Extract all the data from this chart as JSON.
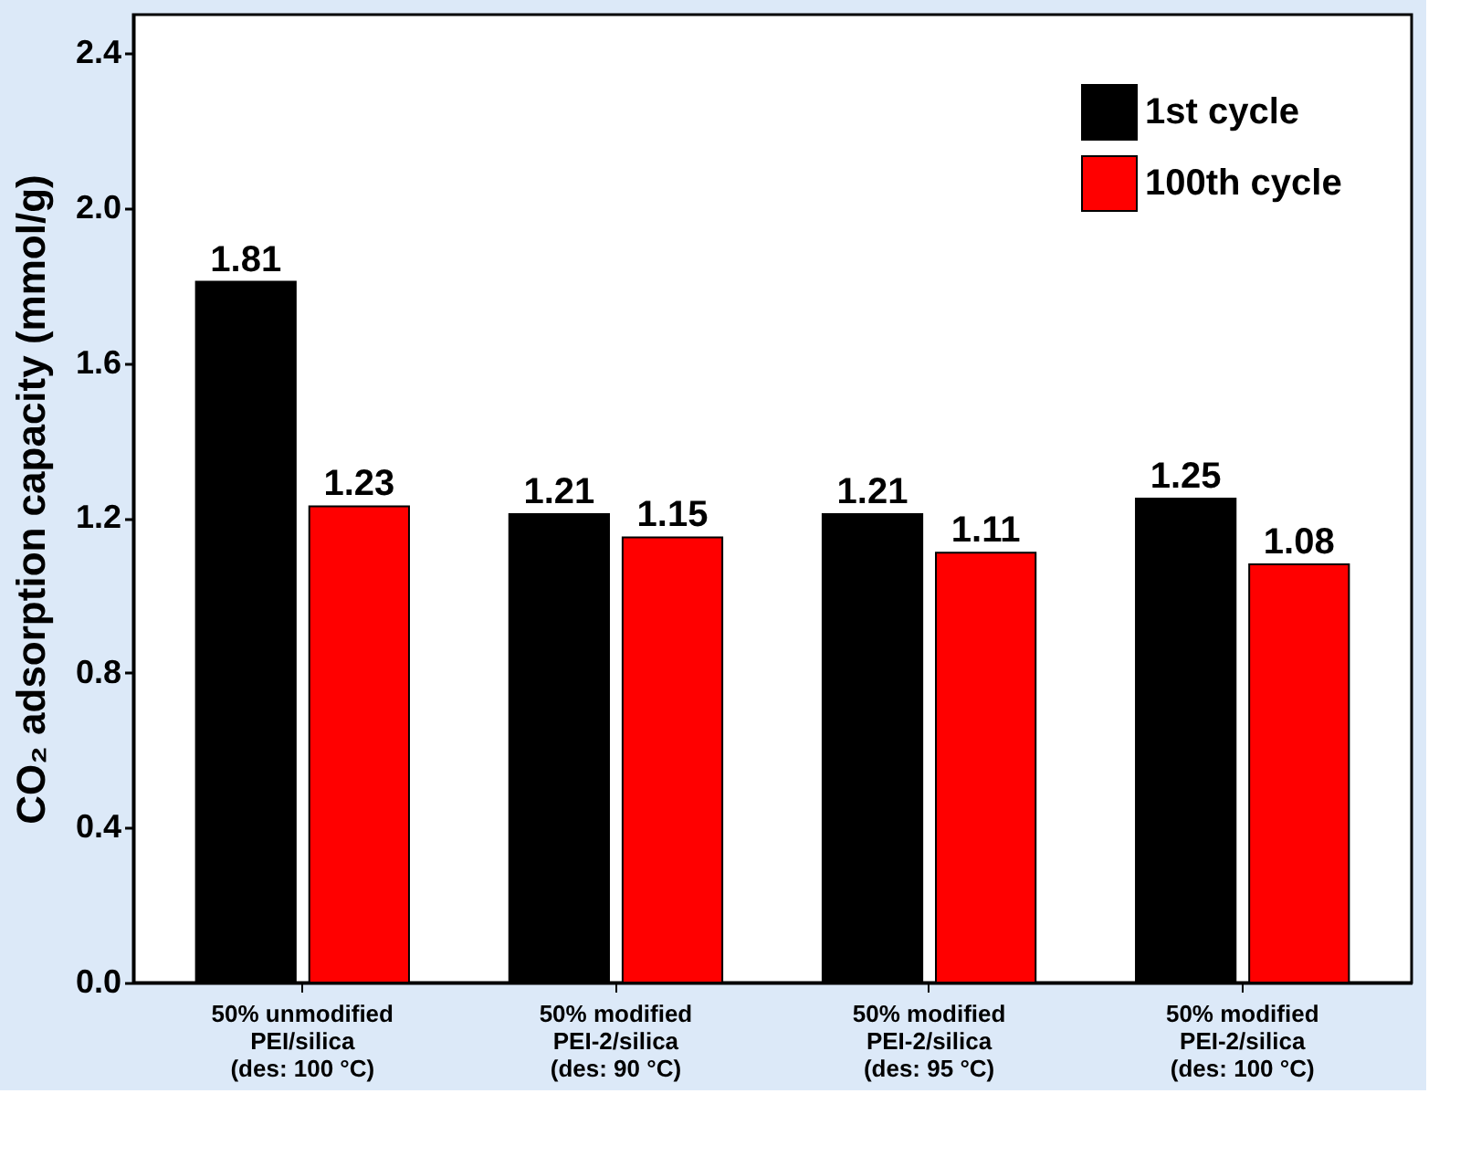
{
  "chart_data": {
    "type": "bar",
    "ylabel": "CO₂ adsorption capacity (mmol/g)",
    "categories": [
      "50% unmodified\nPEI/silica\n(des: 100 °C)",
      "50% modified\nPEI-2/silica\n(des: 90 °C)",
      "50% modified\nPEI-2/silica\n(des: 95 °C)",
      "50% modified\nPEI-2/silica\n(des: 100 °C)"
    ],
    "series": [
      {
        "name": "1st cycle",
        "color": "#000000",
        "values": [
          1.81,
          1.21,
          1.21,
          1.25
        ]
      },
      {
        "name": "100th cycle",
        "color": "#ff0000",
        "values": [
          1.23,
          1.15,
          1.11,
          1.08
        ]
      }
    ],
    "ylim": [
      0,
      2.5
    ],
    "yticks": [
      {
        "value": 0,
        "label": "0.0"
      },
      0.4,
      0.8,
      1.2,
      1.6,
      {
        "value": 2,
        "label": "2.0"
      },
      2.4
    ],
    "data_labels": true,
    "legend": "top right",
    "grid": false
  }
}
